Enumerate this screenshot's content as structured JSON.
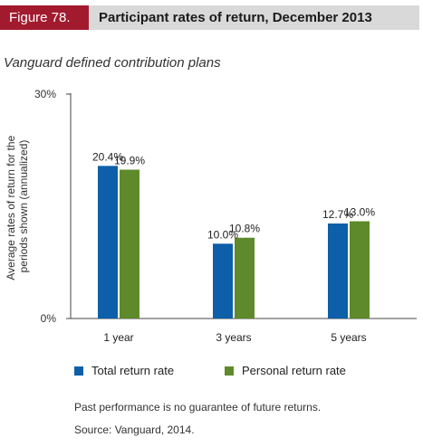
{
  "header": {
    "figure_label": "Figure 78.",
    "title": "Participant rates of return, December 2013"
  },
  "subtitle": "Vanguard defined contribution plans",
  "colors": {
    "total": "#0c5fa8",
    "personal": "#5e8a2b",
    "header_accent": "#a21a2e"
  },
  "chart_data": {
    "type": "bar",
    "categories": [
      "1 year",
      "3 years",
      "5 years"
    ],
    "series": [
      {
        "name": "Total return rate",
        "values": [
          20.4,
          10.0,
          12.7
        ],
        "labels": [
          "20.4%",
          "10.0%",
          "12.7%"
        ]
      },
      {
        "name": "Personal return rate",
        "values": [
          19.9,
          10.8,
          13.0
        ],
        "labels": [
          "19.9%",
          "10.8%",
          "13.0%"
        ]
      }
    ],
    "ylabel_lines": [
      "Average rates of return for the",
      "periods shown (annualized)"
    ],
    "ylim": [
      0,
      30
    ],
    "yticks": [
      {
        "value": 0,
        "label": "0%"
      },
      {
        "value": 30,
        "label": "30%"
      }
    ],
    "grid": false,
    "legend_position": "bottom-left"
  },
  "notes": {
    "performance": "Past performance is no guarantee of future returns.",
    "source": "Source: Vanguard, 2014."
  }
}
